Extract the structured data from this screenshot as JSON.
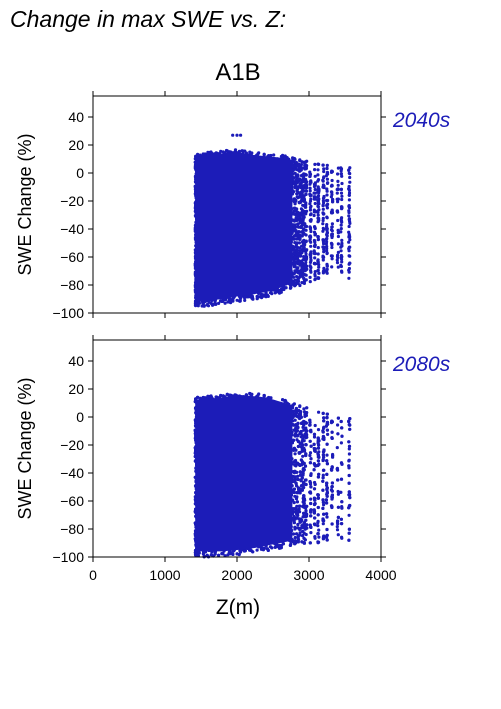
{
  "page_title": "Change in max SWE vs. Z:",
  "chart_data": {
    "type": "scatter",
    "title": "A1B",
    "xlabel": "Z(m)",
    "ylabel": "SWE Change (%)",
    "xlim": [
      0,
      4000
    ],
    "ylim": [
      -100,
      55
    ],
    "x_ticks": [
      0,
      1000,
      2000,
      3000,
      4000
    ],
    "y_ticks": [
      -100,
      -80,
      -60,
      -40,
      -20,
      0,
      20,
      40
    ],
    "grid": false,
    "marker_color": "#1c1cb8",
    "panels": [
      {
        "label": "2040s",
        "x_range": [
          1420,
          3580
        ],
        "y_range": [
          -98,
          27
        ],
        "outlier_points": [
          [
            1940,
            27
          ],
          [
            2000,
            27
          ],
          [
            2050,
            27
          ]
        ],
        "envelope": [
          {
            "x": 1420,
            "y_min": -96,
            "y_max": 13
          },
          {
            "x": 1600,
            "y_min": -95,
            "y_max": 15
          },
          {
            "x": 1800,
            "y_min": -94,
            "y_max": 16
          },
          {
            "x": 2000,
            "y_min": -92,
            "y_max": 17
          },
          {
            "x": 2200,
            "y_min": -91,
            "y_max": 15
          },
          {
            "x": 2400,
            "y_min": -89,
            "y_max": 14
          },
          {
            "x": 2600,
            "y_min": -86,
            "y_max": 13
          },
          {
            "x": 2800,
            "y_min": -82,
            "y_max": 11
          },
          {
            "x": 3000,
            "y_min": -78,
            "y_max": 8
          },
          {
            "x": 3200,
            "y_min": -74,
            "y_max": 6
          },
          {
            "x": 3400,
            "y_min": -72,
            "y_max": 5
          },
          {
            "x": 3580,
            "y_min": -76,
            "y_max": 4
          }
        ]
      },
      {
        "label": "2080s",
        "x_range": [
          1420,
          3580
        ],
        "y_range": [
          -100,
          18
        ],
        "outlier_points": [],
        "envelope": [
          {
            "x": 1420,
            "y_min": -100,
            "y_max": 14
          },
          {
            "x": 1600,
            "y_min": -100,
            "y_max": 15
          },
          {
            "x": 1800,
            "y_min": -100,
            "y_max": 16
          },
          {
            "x": 2000,
            "y_min": -99,
            "y_max": 18
          },
          {
            "x": 2200,
            "y_min": -98,
            "y_max": 17
          },
          {
            "x": 2400,
            "y_min": -96,
            "y_max": 16
          },
          {
            "x": 2600,
            "y_min": -94,
            "y_max": 13
          },
          {
            "x": 2800,
            "y_min": -92,
            "y_max": 10
          },
          {
            "x": 3000,
            "y_min": -90,
            "y_max": 6
          },
          {
            "x": 3200,
            "y_min": -90,
            "y_max": 3
          },
          {
            "x": 3400,
            "y_min": -90,
            "y_max": 1
          },
          {
            "x": 3580,
            "y_min": -88,
            "y_max": -1
          }
        ]
      }
    ]
  }
}
